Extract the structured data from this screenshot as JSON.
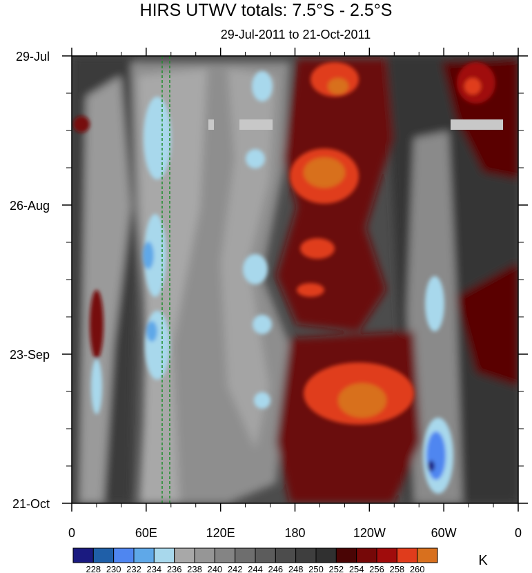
{
  "chart_data": {
    "type": "heatmap",
    "title": "HIRS UTWV totals: 7.5°S - 2.5°S",
    "subtitle": "29-Jul-2011 to 21-Oct-2011",
    "x_axis": {
      "range": [
        "0",
        "0"
      ],
      "tick_labels": [
        "0",
        "60E",
        "120E",
        "180",
        "120W",
        "60W",
        "0"
      ]
    },
    "y_axis": {
      "range": [
        "29-Jul",
        "21-Oct"
      ],
      "tick_labels": [
        "29-Jul",
        "26-Aug",
        "23-Sep",
        "21-Oct"
      ]
    },
    "colorbar": {
      "units": "K",
      "levels": [
        228,
        230,
        232,
        234,
        236,
        238,
        240,
        242,
        244,
        246,
        248,
        250,
        252,
        254,
        256,
        258,
        260
      ],
      "colors": [
        "#1a1a80",
        "#1f5fa8",
        "#4f86f0",
        "#5fa8e8",
        "#a8d8ec",
        "#a8a8a8",
        "#969696",
        "#848484",
        "#6e6e6e",
        "#5c5c5c",
        "#4c4c4c",
        "#3e3e3e",
        "#303030",
        "#4a0505",
        "#760808",
        "#a00c0c",
        "#e03c1c",
        "#d8701e"
      ]
    }
  }
}
